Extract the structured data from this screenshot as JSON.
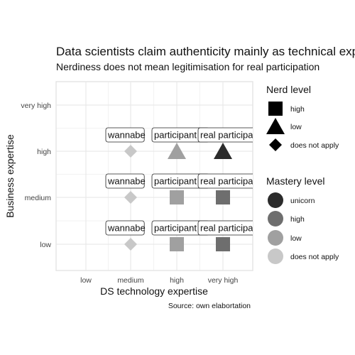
{
  "chart_data": {
    "type": "scatter",
    "title": "Data scientists claim authenticity mainly as technical experts",
    "subtitle": "Nerdiness does not mean legitimisation for real participation",
    "xlabel": "DS technology expertise",
    "ylabel": "Business expertise",
    "caption": "Source: own elabortation",
    "x_categories": [
      "low",
      "medium",
      "high",
      "very high"
    ],
    "y_categories": [
      "low",
      "medium",
      "high",
      "very high"
    ],
    "grid": true,
    "legend_position": "right",
    "points": [
      {
        "x": "medium",
        "y": "low",
        "nerd": "does not apply",
        "mastery": "does not apply"
      },
      {
        "x": "high",
        "y": "low",
        "nerd": "high",
        "mastery": "low"
      },
      {
        "x": "very high",
        "y": "low",
        "nerd": "high",
        "mastery": "high"
      },
      {
        "x": "medium",
        "y": "medium",
        "nerd": "does not apply",
        "mastery": "does not apply"
      },
      {
        "x": "high",
        "y": "medium",
        "nerd": "high",
        "mastery": "low"
      },
      {
        "x": "very high",
        "y": "medium",
        "nerd": "high",
        "mastery": "high"
      },
      {
        "x": "medium",
        "y": "high",
        "nerd": "does not apply",
        "mastery": "does not apply"
      },
      {
        "x": "high",
        "y": "high",
        "nerd": "low",
        "mastery": "low"
      },
      {
        "x": "very high",
        "y": "high",
        "nerd": "low",
        "mastery": "unicorn"
      }
    ],
    "labels": [
      {
        "x": "medium",
        "y": "low",
        "text": "wannabe"
      },
      {
        "x": "high",
        "y": "low",
        "text": "participant"
      },
      {
        "x": "very high",
        "y": "low",
        "text": "real participant"
      },
      {
        "x": "medium",
        "y": "medium",
        "text": "wannabe"
      },
      {
        "x": "high",
        "y": "medium",
        "text": "participant"
      },
      {
        "x": "very high",
        "y": "medium",
        "text": "real participant"
      },
      {
        "x": "medium",
        "y": "high",
        "text": "wannabe"
      },
      {
        "x": "high",
        "y": "high",
        "text": "participant"
      },
      {
        "x": "very high",
        "y": "high",
        "text": "real participant"
      }
    ],
    "legend_nerd": {
      "title": "Nerd level",
      "items": [
        {
          "label": "high",
          "shape": "square"
        },
        {
          "label": "low",
          "shape": "triangle"
        },
        {
          "label": "does not apply",
          "shape": "diamond"
        }
      ]
    },
    "legend_mastery": {
      "title": "Mastery level",
      "items": [
        {
          "label": "unicorn",
          "color": "#2b2b2b"
        },
        {
          "label": "high",
          "color": "#6e6e6e"
        },
        {
          "label": "low",
          "color": "#a0a0a0"
        },
        {
          "label": "does not apply",
          "color": "#c8c8c8"
        }
      ]
    },
    "colors": {
      "panel_border": "#cccccc",
      "grid": "#e6e6e6",
      "unicorn": "#2b2b2b",
      "high": "#6e6e6e",
      "low": "#a0a0a0",
      "does not apply": "#c8c8c8"
    }
  }
}
